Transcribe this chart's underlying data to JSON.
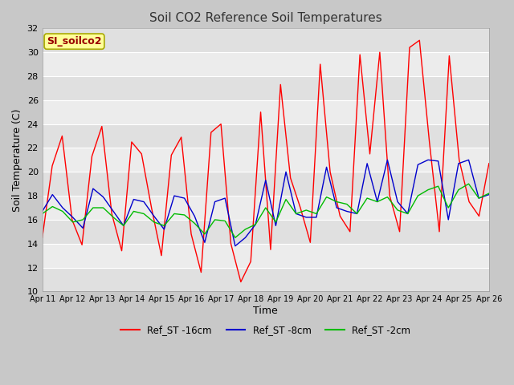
{
  "title": "Soil CO2 Reference Soil Temperatures",
  "xlabel": "Time",
  "ylabel": "Soil Temperature (C)",
  "ylim": [
    10,
    32
  ],
  "yticks": [
    10,
    12,
    14,
    16,
    18,
    20,
    22,
    24,
    26,
    28,
    30,
    32
  ],
  "xtick_labels": [
    "Apr 11",
    "Apr 12",
    "Apr 13",
    "Apr 14",
    "Apr 15",
    "Apr 16",
    "Apr 17",
    "Apr 18",
    "Apr 19",
    "Apr 20",
    "Apr 21",
    "Apr 22",
    "Apr 23",
    "Apr 24",
    "Apr 25",
    "Apr 26"
  ],
  "legend_label": "SI_soilco2",
  "legend_color": "#ffff99",
  "legend_border_color": "#aaaa00",
  "line_colors": [
    "#ff0000",
    "#0000cc",
    "#00bb00"
  ],
  "line_labels": [
    "Ref_ST -16cm",
    "Ref_ST -8cm",
    "Ref_ST -2cm"
  ],
  "fig_bg_color": "#c8c8c8",
  "plot_bg_color": "#e8e8e8",
  "grid_color": "#ffffff",
  "ref_st_16cm": [
    14.5,
    20.5,
    23.0,
    16.0,
    13.9,
    21.3,
    23.8,
    16.5,
    13.4,
    22.5,
    21.5,
    17.0,
    13.0,
    21.4,
    22.9,
    14.8,
    11.6,
    23.3,
    24.0,
    14.0,
    10.8,
    12.5,
    25.0,
    13.5,
    27.3,
    19.5,
    17.0,
    14.1,
    29.0,
    20.0,
    16.3,
    15.0,
    29.8,
    21.5,
    30.0,
    18.0,
    15.0,
    30.4,
    31.0,
    22.5,
    15.0,
    29.7,
    21.0,
    17.5,
    16.3,
    20.7
  ],
  "ref_st_8cm": [
    16.7,
    18.1,
    17.0,
    16.2,
    15.3,
    18.6,
    17.9,
    16.7,
    15.5,
    17.7,
    17.5,
    16.3,
    15.2,
    18.0,
    17.8,
    16.3,
    14.1,
    17.5,
    17.8,
    13.8,
    14.5,
    15.6,
    19.3,
    15.5,
    20.0,
    16.5,
    16.2,
    16.2,
    20.4,
    17.0,
    16.7,
    16.5,
    20.7,
    17.5,
    21.0,
    17.5,
    16.5,
    20.6,
    21.0,
    20.9,
    16.0,
    20.7,
    21.0,
    17.8,
    18.1
  ],
  "ref_st_2cm": [
    16.5,
    17.1,
    16.7,
    15.8,
    16.0,
    17.0,
    17.0,
    16.2,
    15.5,
    16.7,
    16.5,
    15.8,
    15.5,
    16.5,
    16.4,
    15.7,
    14.8,
    16.0,
    15.9,
    14.5,
    15.2,
    15.6,
    17.0,
    15.8,
    17.7,
    16.5,
    16.8,
    16.5,
    17.9,
    17.5,
    17.3,
    16.5,
    17.8,
    17.5,
    17.9,
    16.8,
    16.5,
    18.0,
    18.5,
    18.8,
    17.0,
    18.5,
    19.0,
    17.8,
    18.2
  ]
}
